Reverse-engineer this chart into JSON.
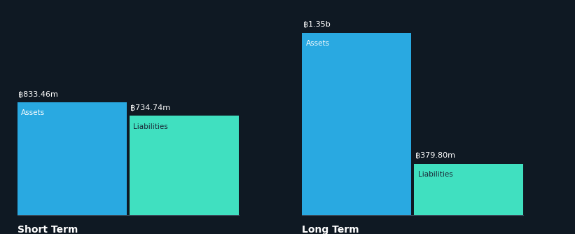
{
  "background_color": "#0f1923",
  "bar_color_assets": "#29a9e1",
  "bar_color_liabilities": "#40e0c0",
  "text_color": "#ffffff",
  "label_color_dark": "#1a2535",
  "groups": [
    {
      "label": "Short Term",
      "assets_value": 833.46,
      "liabilities_value": 734.74,
      "assets_label": "฿833.46m",
      "liabilities_label": "฿734.74m",
      "assets_text": "Assets",
      "liabilities_text": "Liabilities"
    },
    {
      "label": "Long Term",
      "assets_value": 1350,
      "liabilities_value": 379.8,
      "assets_label": "฿1.35b",
      "liabilities_label": "฿379.80m",
      "assets_text": "Assets",
      "liabilities_text": "Liabilities"
    }
  ],
  "max_value": 1350,
  "font_size_label": 8.0,
  "font_size_bar_text": 7.5,
  "font_size_group_label": 10
}
